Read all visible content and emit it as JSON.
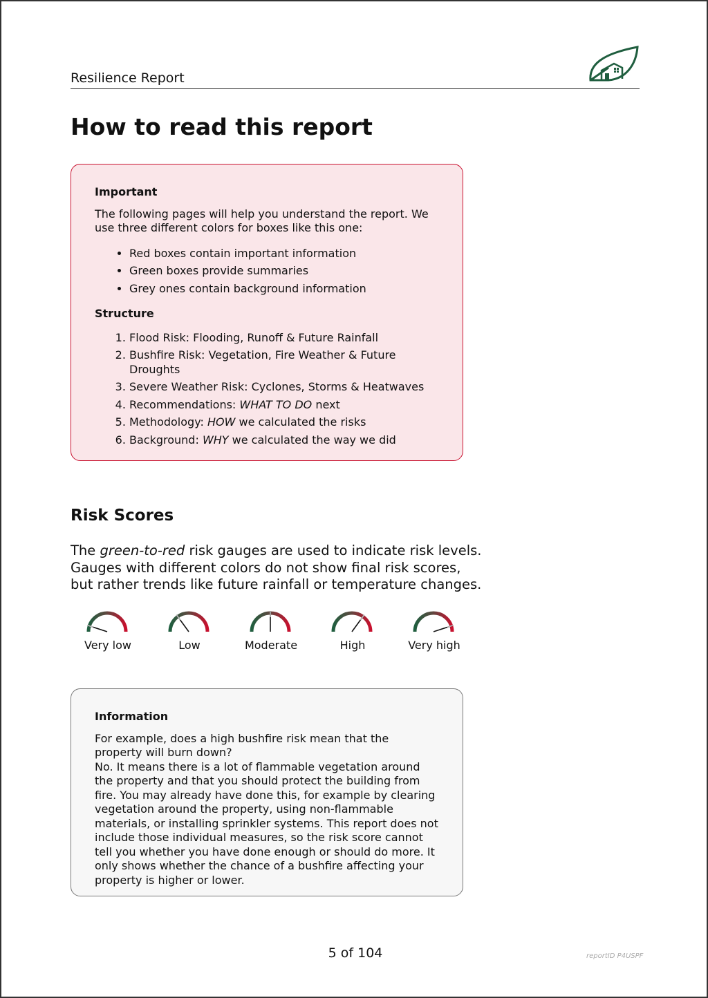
{
  "header": {
    "title": "Resilience Report",
    "logo_icon": "leaf-house-logo",
    "brand_color": "#1f5e3f"
  },
  "page_title": "How to read this report",
  "important_box": {
    "heading": "Important",
    "text": "The following pages will help you understand the report. We use three different colors for boxes like this one:",
    "bullets": [
      "Red boxes contain important information",
      "Green boxes provide summaries",
      "Grey ones contain background information"
    ],
    "structure_heading": "Structure",
    "structure": [
      {
        "pre": "Flood Risk: Flooding, Runoff & Future Rainfall",
        "em": "",
        "post": ""
      },
      {
        "pre": "Bushfire Risk: Vegetation, Fire Weather & Future Droughts",
        "em": "",
        "post": ""
      },
      {
        "pre": "Severe Weather Risk: Cyclones, Storms & Heatwaves",
        "em": "",
        "post": ""
      },
      {
        "pre": "Recommendations: ",
        "em": "WHAT TO DO",
        "post": " next"
      },
      {
        "pre": "Methodology: ",
        "em": "HOW",
        "post": " we calculated the risks"
      },
      {
        "pre": "Background: ",
        "em": "WHY",
        "post": " we calculated the way we did"
      }
    ],
    "border_color": "#c8102e",
    "background": "#fae6e9"
  },
  "risk_scores": {
    "heading": "Risk Scores",
    "intro_pre": "The ",
    "intro_em": "green-to-red",
    "intro_post": " risk gauges are used to indicate risk levels. Gauges with different colors do not show final risk scores, but rather trends like future rainfall or temperature changes.",
    "gauges": [
      {
        "label": "Very low",
        "level": 0.1
      },
      {
        "label": "Low",
        "level": 0.3
      },
      {
        "label": "Moderate",
        "level": 0.5
      },
      {
        "label": "High",
        "level": 0.7
      },
      {
        "label": "Very high",
        "level": 0.9
      }
    ],
    "gauge_colors": {
      "low": "#1f5e3f",
      "high": "#c8102e"
    }
  },
  "info_box": {
    "heading": "Information",
    "question": "For example, does a high bushfire risk mean that the property will burn down?",
    "answer": "No. It means there is a lot of flammable vegetation around the property and that you should protect the building from fire. You may already have done this, for example by clearing vegetation around the property, using non-flammable materials, or installing sprinkler systems. This report does not include those individ­ual measures, so the risk score cannot tell you whether you have done enough or should do more. It only shows whether the chance of a bushfire affecting your property is higher or lower."
  },
  "footer": {
    "page": "5 of 104",
    "report_id": "reportID P4USPF"
  }
}
